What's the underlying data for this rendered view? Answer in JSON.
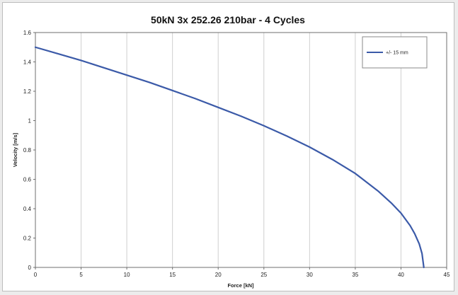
{
  "chart_data": {
    "type": "line",
    "title": "50kN 3x 252.26 210bar - 4 Cycles",
    "xlabel": "Force [kN]",
    "ylabel": "Velocity [m/s]",
    "xlim": [
      0,
      45
    ],
    "ylim": [
      0,
      1.6
    ],
    "xticks": [
      0,
      5,
      10,
      15,
      20,
      25,
      30,
      35,
      40,
      45
    ],
    "yticks": [
      0,
      0.2,
      0.4,
      0.6,
      0.8,
      1,
      1.2,
      1.4,
      1.6
    ],
    "xtick_labels": [
      "0",
      "5",
      "10",
      "15",
      "20",
      "25",
      "30",
      "35",
      "40",
      "45"
    ],
    "ytick_labels": [
      "0",
      "0.2",
      "0.4",
      "0.6",
      "0.8",
      "1",
      "1.2",
      "1.4",
      "1.6"
    ],
    "grid": true,
    "legend_position": "top-right",
    "series": [
      {
        "name": "+/- 15 mm",
        "color": "#3b5aa8",
        "x": [
          0,
          2.5,
          5,
          7.5,
          10,
          12.5,
          15,
          17.5,
          20,
          22.5,
          25,
          27.5,
          30,
          32.5,
          35,
          37.5,
          39,
          40,
          41,
          41.5,
          42,
          42.3,
          42.5
        ],
        "y": [
          1.5,
          1.455,
          1.41,
          1.36,
          1.31,
          1.26,
          1.205,
          1.15,
          1.09,
          1.03,
          0.965,
          0.895,
          0.82,
          0.735,
          0.64,
          0.52,
          0.435,
          0.37,
          0.285,
          0.23,
          0.16,
          0.095,
          0.0
        ]
      }
    ]
  }
}
